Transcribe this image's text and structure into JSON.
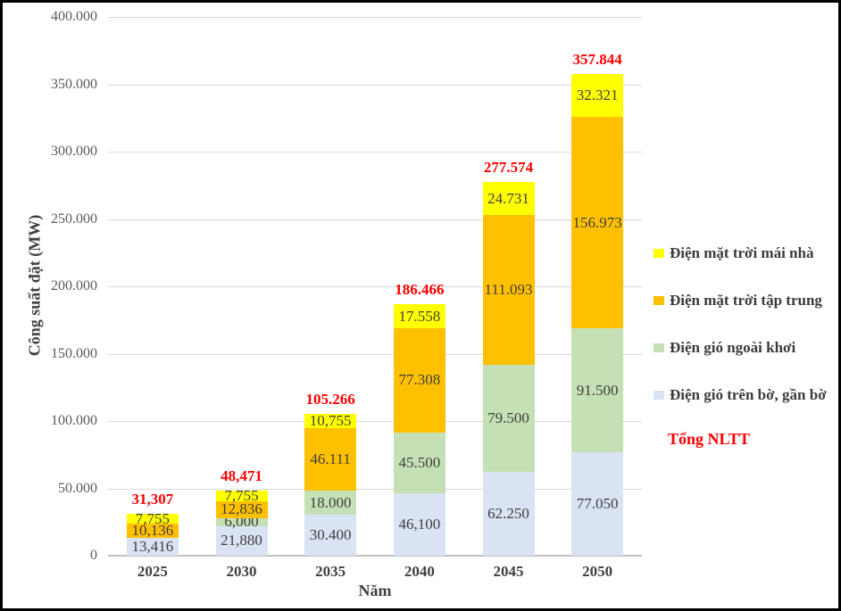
{
  "chart_data": {
    "type": "bar",
    "stacked": true,
    "title": "",
    "xlabel": "Năm",
    "ylabel": "Công suất đặt (MW)",
    "categories": [
      "2025",
      "2030",
      "2035",
      "2040",
      "2045",
      "2050"
    ],
    "series": [
      {
        "name": "Điện gió trên bờ, gần bờ",
        "slug": "dien-gio-tren-bo-gan-bo",
        "color": "#dae3f3",
        "values": [
          13416,
          21880,
          30400,
          46100,
          62250,
          77050
        ],
        "labels": [
          "13,416",
          "21,880",
          "30.400",
          "46,100",
          "62.250",
          "77.050"
        ]
      },
      {
        "name": "Điện gió ngoài khơi",
        "slug": "dien-gio-ngoai-khoi",
        "color": "#c5e0b4",
        "values": [
          0,
          6000,
          18000,
          45500,
          79500,
          91500
        ],
        "labels": [
          "",
          "6,000",
          "18.000",
          "45.500",
          "79.500",
          "91.500"
        ]
      },
      {
        "name": "Điện mặt trời tập trung",
        "slug": "dien-mat-troi-tap-trung",
        "color": "#ffc000",
        "values": [
          10136,
          12836,
          46111,
          77308,
          111093,
          156973
        ],
        "labels": [
          "10,136",
          "12,836",
          "46.111",
          "77.308",
          "111.093",
          "156.973"
        ]
      },
      {
        "name": "Điện mặt trời mái nhà",
        "slug": "dien-mat-troi-mai-nha",
        "color": "#ffff00",
        "values": [
          7755,
          7755,
          10755,
          17558,
          24731,
          32321
        ],
        "labels": [
          "7,755",
          "7,755",
          "10,755",
          "17.558",
          "24.731",
          "32.321"
        ]
      }
    ],
    "totals": {
      "name": "Tổng NLTT",
      "color": "#ff0000",
      "values": [
        31307,
        48471,
        105266,
        186466,
        277574,
        357844
      ],
      "labels": [
        "31,307",
        "48,471",
        "105.266",
        "186.466",
        "277.574",
        "357.844"
      ]
    },
    "ylim": [
      0,
      400000
    ],
    "yticks": {
      "values": [
        0,
        50000,
        100000,
        150000,
        200000,
        250000,
        300000,
        350000,
        400000
      ],
      "labels": [
        "0",
        "50.000",
        "100.000",
        "150.000",
        "200.000",
        "250.000",
        "300.000",
        "350.000",
        "400.000"
      ]
    },
    "grid": true,
    "legend": {
      "position": "right",
      "entries": [
        {
          "label": "Điện mặt trời mái nhà",
          "slug": "dien-mat-troi-mai-nha",
          "color": "#ffff00"
        },
        {
          "label": "Điện mặt trời tập trung",
          "slug": "dien-mat-troi-tap-trung",
          "color": "#ffc000"
        },
        {
          "label": "Điện gió ngoài khơi",
          "slug": "dien-gio-ngoai-khoi",
          "color": "#c5e0b4"
        },
        {
          "label": "Điện gió trên bờ, gần bờ",
          "slug": "dien-gio-tren-bo-gan-bo",
          "color": "#dae3f3"
        }
      ],
      "extra_label": "Tổng NLTT"
    }
  },
  "colors": {
    "total_label": "#ff0000",
    "gridline": "#d9d9d9",
    "axis_line": "#bfbfbf",
    "tick_text": "#595959",
    "data_label_text": "#3f3f3f"
  }
}
